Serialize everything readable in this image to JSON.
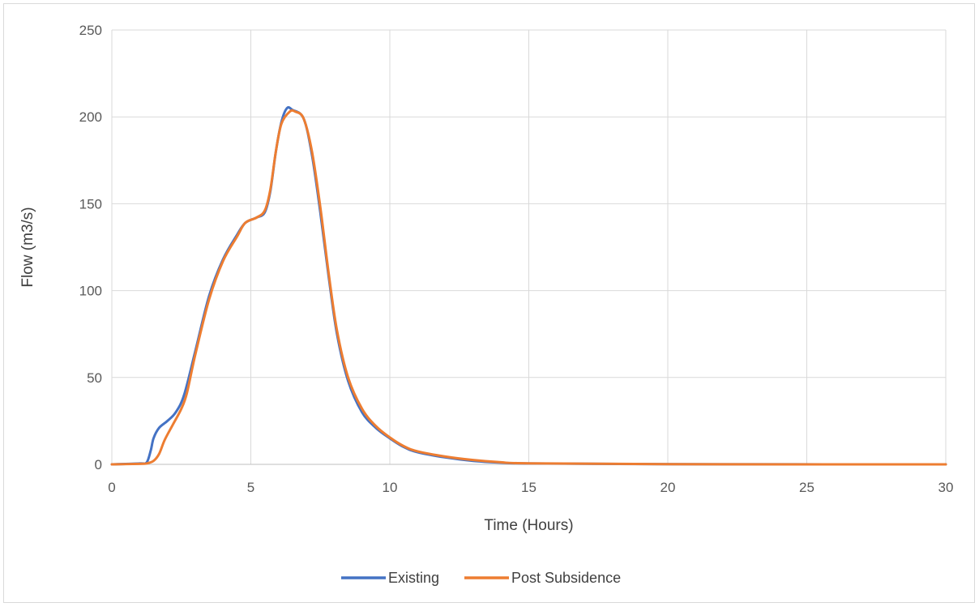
{
  "chart_data": {
    "type": "line",
    "title": "",
    "xlabel": "Time (Hours)",
    "ylabel": "Flow (m3/s)",
    "xlim": [
      0,
      30
    ],
    "ylim": [
      0,
      250
    ],
    "xticks": [
      0,
      5,
      10,
      15,
      20,
      25,
      30
    ],
    "yticks": [
      0,
      50,
      100,
      150,
      200,
      250
    ],
    "grid": true,
    "legend_position": "bottom",
    "series": [
      {
        "name": "Existing",
        "color": "#4472C4",
        "points": [
          [
            0,
            0
          ],
          [
            1,
            0.5
          ],
          [
            1.25,
            1
          ],
          [
            1.4,
            8
          ],
          [
            1.5,
            15
          ],
          [
            1.7,
            21
          ],
          [
            2,
            25
          ],
          [
            2.3,
            30
          ],
          [
            2.6,
            40
          ],
          [
            3,
            65
          ],
          [
            3.5,
            97
          ],
          [
            4,
            118
          ],
          [
            4.5,
            132
          ],
          [
            4.8,
            139
          ],
          [
            5.2,
            142
          ],
          [
            5.5,
            145
          ],
          [
            5.7,
            157
          ],
          [
            5.9,
            180
          ],
          [
            6.1,
            197
          ],
          [
            6.3,
            205
          ],
          [
            6.5,
            204
          ],
          [
            6.9,
            199
          ],
          [
            7.2,
            178
          ],
          [
            7.5,
            145
          ],
          [
            7.8,
            108
          ],
          [
            8.1,
            75
          ],
          [
            8.5,
            48
          ],
          [
            9,
            30
          ],
          [
            9.5,
            21
          ],
          [
            10,
            15
          ],
          [
            10.5,
            10
          ],
          [
            11,
            7
          ],
          [
            12,
            4
          ],
          [
            13,
            2
          ],
          [
            14,
            1
          ],
          [
            15,
            0.5
          ],
          [
            20,
            0.1
          ],
          [
            30,
            0
          ]
        ]
      },
      {
        "name": "Post Subsidence",
        "color": "#ED7D31",
        "points": [
          [
            0,
            0
          ],
          [
            1,
            0.3
          ],
          [
            1.25,
            0.5
          ],
          [
            1.5,
            2
          ],
          [
            1.7,
            6
          ],
          [
            1.9,
            14
          ],
          [
            2.2,
            23
          ],
          [
            2.5,
            32
          ],
          [
            2.7,
            41
          ],
          [
            3,
            63
          ],
          [
            3.5,
            95
          ],
          [
            4,
            117
          ],
          [
            4.5,
            131
          ],
          [
            4.8,
            139
          ],
          [
            5.2,
            142
          ],
          [
            5.5,
            146
          ],
          [
            5.7,
            158
          ],
          [
            5.9,
            180
          ],
          [
            6.1,
            196
          ],
          [
            6.4,
            203
          ],
          [
            6.6,
            203
          ],
          [
            6.9,
            199
          ],
          [
            7.2,
            180
          ],
          [
            7.5,
            148
          ],
          [
            7.8,
            110
          ],
          [
            8.1,
            77
          ],
          [
            8.5,
            50
          ],
          [
            9,
            32
          ],
          [
            9.5,
            22
          ],
          [
            10,
            15.5
          ],
          [
            10.5,
            10.5
          ],
          [
            11,
            7.5
          ],
          [
            12,
            4.5
          ],
          [
            13,
            2.5
          ],
          [
            14,
            1.2
          ],
          [
            15,
            0.6
          ],
          [
            20,
            0.1
          ],
          [
            30,
            0
          ]
        ]
      }
    ]
  }
}
